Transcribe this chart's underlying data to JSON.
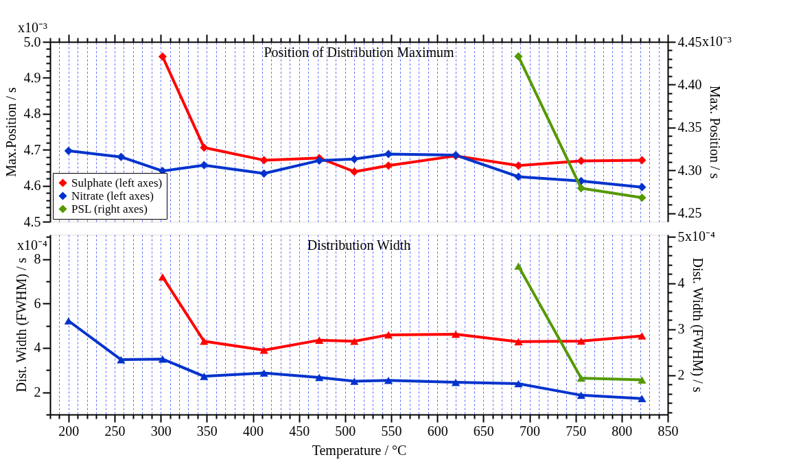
{
  "chart_data": [
    {
      "type": "line",
      "title": "Position of Distribution Maximum",
      "ylabel": "Max.Position / s",
      "y2label": "Max. Position / s",
      "x": [
        200,
        257,
        302,
        347,
        412,
        472,
        510,
        547,
        620,
        688,
        756,
        822
      ],
      "series": [
        {
          "name": "Sulphate (left axes)",
          "color": "#ff0000",
          "values": [
            null,
            null,
            4.959,
            4.706,
            4.671,
            4.677,
            4.639,
            4.656,
            4.683,
            4.656,
            4.669,
            4.671
          ]
        },
        {
          "name": "Nitrate (left axes)",
          "color": "#0033cc",
          "values": [
            4.697,
            4.68,
            4.641,
            4.657,
            4.634,
            4.67,
            4.674,
            4.688,
            4.685,
            4.625,
            4.613,
            4.596
          ]
        },
        {
          "name": "PSL (right axes)",
          "color": "#559900",
          "axis": "y2",
          "values": [
            null,
            null,
            null,
            null,
            null,
            null,
            null,
            null,
            null,
            4.433,
            4.279,
            4.268
          ]
        }
      ],
      "xlim": [
        180,
        850
      ],
      "xticks": [
        {
          "value": 180,
          "label": null
        },
        {
          "value": 190,
          "label": null
        },
        200,
        {
          "value": 210,
          "label": null
        },
        {
          "value": 220,
          "label": null
        },
        {
          "value": 230,
          "label": null
        },
        {
          "value": 240,
          "label": null
        },
        250,
        {
          "value": 260,
          "label": null
        },
        {
          "value": 270,
          "label": null
        },
        {
          "value": 280,
          "label": null
        },
        {
          "value": 290,
          "label": null
        },
        300,
        {
          "value": 310,
          "label": null
        },
        {
          "value": 320,
          "label": null
        },
        {
          "value": 330,
          "label": null
        },
        {
          "value": 340,
          "label": null
        },
        350,
        {
          "value": 360,
          "label": null
        },
        {
          "value": 370,
          "label": null
        },
        {
          "value": 380,
          "label": null
        },
        {
          "value": 390,
          "label": null
        },
        400,
        {
          "value": 410,
          "label": null
        },
        {
          "value": 420,
          "label": null
        },
        {
          "value": 430,
          "label": null
        },
        {
          "value": 440,
          "label": null
        },
        450,
        {
          "value": 460,
          "label": null
        },
        {
          "value": 470,
          "label": null
        },
        {
          "value": 480,
          "label": null
        },
        {
          "value": 490,
          "label": null
        },
        500,
        {
          "value": 510,
          "label": null
        },
        {
          "value": 520,
          "label": null
        },
        {
          "value": 530,
          "label": null
        },
        {
          "value": 540,
          "label": null
        },
        550,
        {
          "value": 560,
          "label": null
        },
        {
          "value": 570,
          "label": null
        },
        {
          "value": 580,
          "label": null
        },
        {
          "value": 590,
          "label": null
        },
        600,
        {
          "value": 610,
          "label": null
        },
        {
          "value": 620,
          "label": null
        },
        {
          "value": 630,
          "label": null
        },
        {
          "value": 640,
          "label": null
        },
        650,
        {
          "value": 660,
          "label": null
        },
        {
          "value": 670,
          "label": null
        },
        {
          "value": 680,
          "label": null
        },
        {
          "value": 690,
          "label": null
        },
        700,
        {
          "value": 710,
          "label": null
        },
        {
          "value": 720,
          "label": null
        },
        {
          "value": 730,
          "label": null
        },
        {
          "value": 740,
          "label": null
        },
        750,
        {
          "value": 760,
          "label": null
        },
        {
          "value": 770,
          "label": null
        },
        {
          "value": 780,
          "label": null
        },
        {
          "value": 790,
          "label": null
        },
        800,
        {
          "value": 810,
          "label": null
        },
        {
          "value": 820,
          "label": null
        },
        {
          "value": 830,
          "label": null
        },
        {
          "value": 840,
          "label": null
        },
        850
      ],
      "ylim": [
        4.5,
        5.0
      ],
      "yticks": [
        4.5,
        {
          "value": 4.52,
          "label": null
        },
        {
          "value": 4.54,
          "label": null
        },
        {
          "value": 4.56,
          "label": null
        },
        {
          "value": 4.58,
          "label": null
        },
        4.6,
        {
          "value": 4.62,
          "label": null
        },
        {
          "value": 4.64,
          "label": null
        },
        {
          "value": 4.66,
          "label": null
        },
        {
          "value": 4.68,
          "label": null
        },
        4.7,
        {
          "value": 4.72,
          "label": null
        },
        {
          "value": 4.74,
          "label": null
        },
        {
          "value": 4.76,
          "label": null
        },
        {
          "value": 4.78,
          "label": null
        },
        4.8,
        {
          "value": 4.82,
          "label": null
        },
        {
          "value": 4.84,
          "label": null
        },
        {
          "value": 4.86,
          "label": null
        },
        {
          "value": 4.88,
          "label": null
        },
        4.9,
        {
          "value": 4.92,
          "label": null
        },
        {
          "value": 4.94,
          "label": null
        },
        {
          "value": 4.96,
          "label": null
        },
        {
          "value": 4.98,
          "label": null
        },
        {
          "value": 5.0,
          "label": "5.0"
        }
      ],
      "y2lim": [
        4.24,
        4.45
      ],
      "y2ticks": [
        {
          "value": 4.25,
          "label": "4.25"
        },
        {
          "value": 4.26,
          "label": null
        },
        {
          "value": 4.27,
          "label": null
        },
        {
          "value": 4.28,
          "label": null
        },
        {
          "value": 4.29,
          "label": null
        },
        {
          "value": 4.3,
          "label": "4.30"
        },
        {
          "value": 4.31,
          "label": null
        },
        {
          "value": 4.32,
          "label": null
        },
        {
          "value": 4.33,
          "label": null
        },
        {
          "value": 4.34,
          "label": null
        },
        {
          "value": 4.35,
          "label": "4.35"
        },
        {
          "value": 4.36,
          "label": null
        },
        {
          "value": 4.37,
          "label": null
        },
        {
          "value": 4.38,
          "label": null
        },
        {
          "value": 4.39,
          "label": null
        },
        {
          "value": 4.4,
          "label": "4.40"
        },
        {
          "value": 4.41,
          "label": null
        },
        {
          "value": 4.42,
          "label": null
        },
        {
          "value": 4.43,
          "label": null
        },
        {
          "value": 4.44,
          "label": null
        },
        {
          "value": 4.45,
          "label": "4.45"
        }
      ],
      "annotations": [
        "x10⁻³",
        "x10⁻³"
      ],
      "tick_labels": "y",
      "grid": "x",
      "legend": "bottom left",
      "marker": "diamond",
      "line_style": "solid"
    },
    {
      "type": "line",
      "title": "Distribution Width",
      "xlabel": "Temperature / °C",
      "ylabel": "Dist. Width (FWHM) / s",
      "y2label": "Dist. Width (FWHM) / s",
      "x": [
        200,
        257,
        302,
        347,
        412,
        472,
        510,
        547,
        620,
        688,
        756,
        822
      ],
      "series": [
        {
          "color": "#ff0000",
          "values": [
            null,
            null,
            7.2,
            4.3,
            3.9,
            4.35,
            4.3,
            4.59,
            4.62,
            4.28,
            4.31,
            4.54
          ]
        },
        {
          "color": "#0033cc",
          "values": [
            5.22,
            3.47,
            3.5,
            2.72,
            2.87,
            2.67,
            2.5,
            2.54,
            2.45,
            2.39,
            1.87,
            1.72
          ]
        },
        {
          "color": "#559900",
          "axis": "y2",
          "values": [
            null,
            null,
            null,
            null,
            null,
            null,
            null,
            null,
            null,
            4.37,
            1.94,
            1.9
          ]
        }
      ],
      "xlim": [
        180,
        850
      ],
      "xticks": [
        {
          "value": 180,
          "label": null
        },
        {
          "value": 190,
          "label": null
        },
        200,
        {
          "value": 210,
          "label": null
        },
        {
          "value": 220,
          "label": null
        },
        {
          "value": 230,
          "label": null
        },
        {
          "value": 240,
          "label": null
        },
        250,
        {
          "value": 260,
          "label": null
        },
        {
          "value": 270,
          "label": null
        },
        {
          "value": 280,
          "label": null
        },
        {
          "value": 290,
          "label": null
        },
        300,
        {
          "value": 310,
          "label": null
        },
        {
          "value": 320,
          "label": null
        },
        {
          "value": 330,
          "label": null
        },
        {
          "value": 340,
          "label": null
        },
        350,
        {
          "value": 360,
          "label": null
        },
        {
          "value": 370,
          "label": null
        },
        {
          "value": 380,
          "label": null
        },
        {
          "value": 390,
          "label": null
        },
        400,
        {
          "value": 410,
          "label": null
        },
        {
          "value": 420,
          "label": null
        },
        {
          "value": 430,
          "label": null
        },
        {
          "value": 440,
          "label": null
        },
        450,
        {
          "value": 460,
          "label": null
        },
        {
          "value": 470,
          "label": null
        },
        {
          "value": 480,
          "label": null
        },
        {
          "value": 490,
          "label": null
        },
        500,
        {
          "value": 510,
          "label": null
        },
        {
          "value": 520,
          "label": null
        },
        {
          "value": 530,
          "label": null
        },
        {
          "value": 540,
          "label": null
        },
        550,
        {
          "value": 560,
          "label": null
        },
        {
          "value": 570,
          "label": null
        },
        {
          "value": 580,
          "label": null
        },
        {
          "value": 590,
          "label": null
        },
        600,
        {
          "value": 610,
          "label": null
        },
        {
          "value": 620,
          "label": null
        },
        {
          "value": 630,
          "label": null
        },
        {
          "value": 640,
          "label": null
        },
        650,
        {
          "value": 660,
          "label": null
        },
        {
          "value": 670,
          "label": null
        },
        {
          "value": 680,
          "label": null
        },
        {
          "value": 690,
          "label": null
        },
        700,
        {
          "value": 710,
          "label": null
        },
        {
          "value": 720,
          "label": null
        },
        {
          "value": 730,
          "label": null
        },
        {
          "value": 740,
          "label": null
        },
        750,
        {
          "value": 760,
          "label": null
        },
        {
          "value": 770,
          "label": null
        },
        {
          "value": 780,
          "label": null
        },
        {
          "value": 790,
          "label": null
        },
        800,
        {
          "value": 810,
          "label": null
        },
        {
          "value": 820,
          "label": null
        },
        {
          "value": 830,
          "label": null
        },
        {
          "value": 840,
          "label": null
        },
        850
      ],
      "ylim": [
        1.0,
        9.1
      ],
      "yticks": [
        {
          "value": 1,
          "label": null
        },
        2,
        {
          "value": 3,
          "label": null
        },
        4,
        {
          "value": 5,
          "label": null
        },
        6,
        {
          "value": 7,
          "label": null
        },
        8,
        {
          "value": 9,
          "label": null
        }
      ],
      "y2lim": [
        1.15,
        5.05
      ],
      "y2ticks": [
        {
          "value": 1.2,
          "label": null
        },
        {
          "value": 1.4,
          "label": null
        },
        {
          "value": 1.6,
          "label": null
        },
        {
          "value": 1.8,
          "label": null
        },
        2,
        {
          "value": 2.2,
          "label": null
        },
        {
          "value": 2.4,
          "label": null
        },
        {
          "value": 2.6,
          "label": null
        },
        {
          "value": 2.8,
          "label": null
        },
        3,
        {
          "value": 3.2,
          "label": null
        },
        {
          "value": 3.4,
          "label": null
        },
        {
          "value": 3.6,
          "label": null
        },
        {
          "value": 3.8,
          "label": null
        },
        4,
        {
          "value": 4.2,
          "label": null
        },
        {
          "value": 4.4,
          "label": null
        },
        {
          "value": 4.6,
          "label": null
        },
        {
          "value": 4.8,
          "label": null
        },
        5
      ],
      "annotations": [
        "x10⁻⁴",
        "x10⁻⁴"
      ],
      "grid": "x",
      "marker": "triangle",
      "line_style": "solid"
    }
  ]
}
